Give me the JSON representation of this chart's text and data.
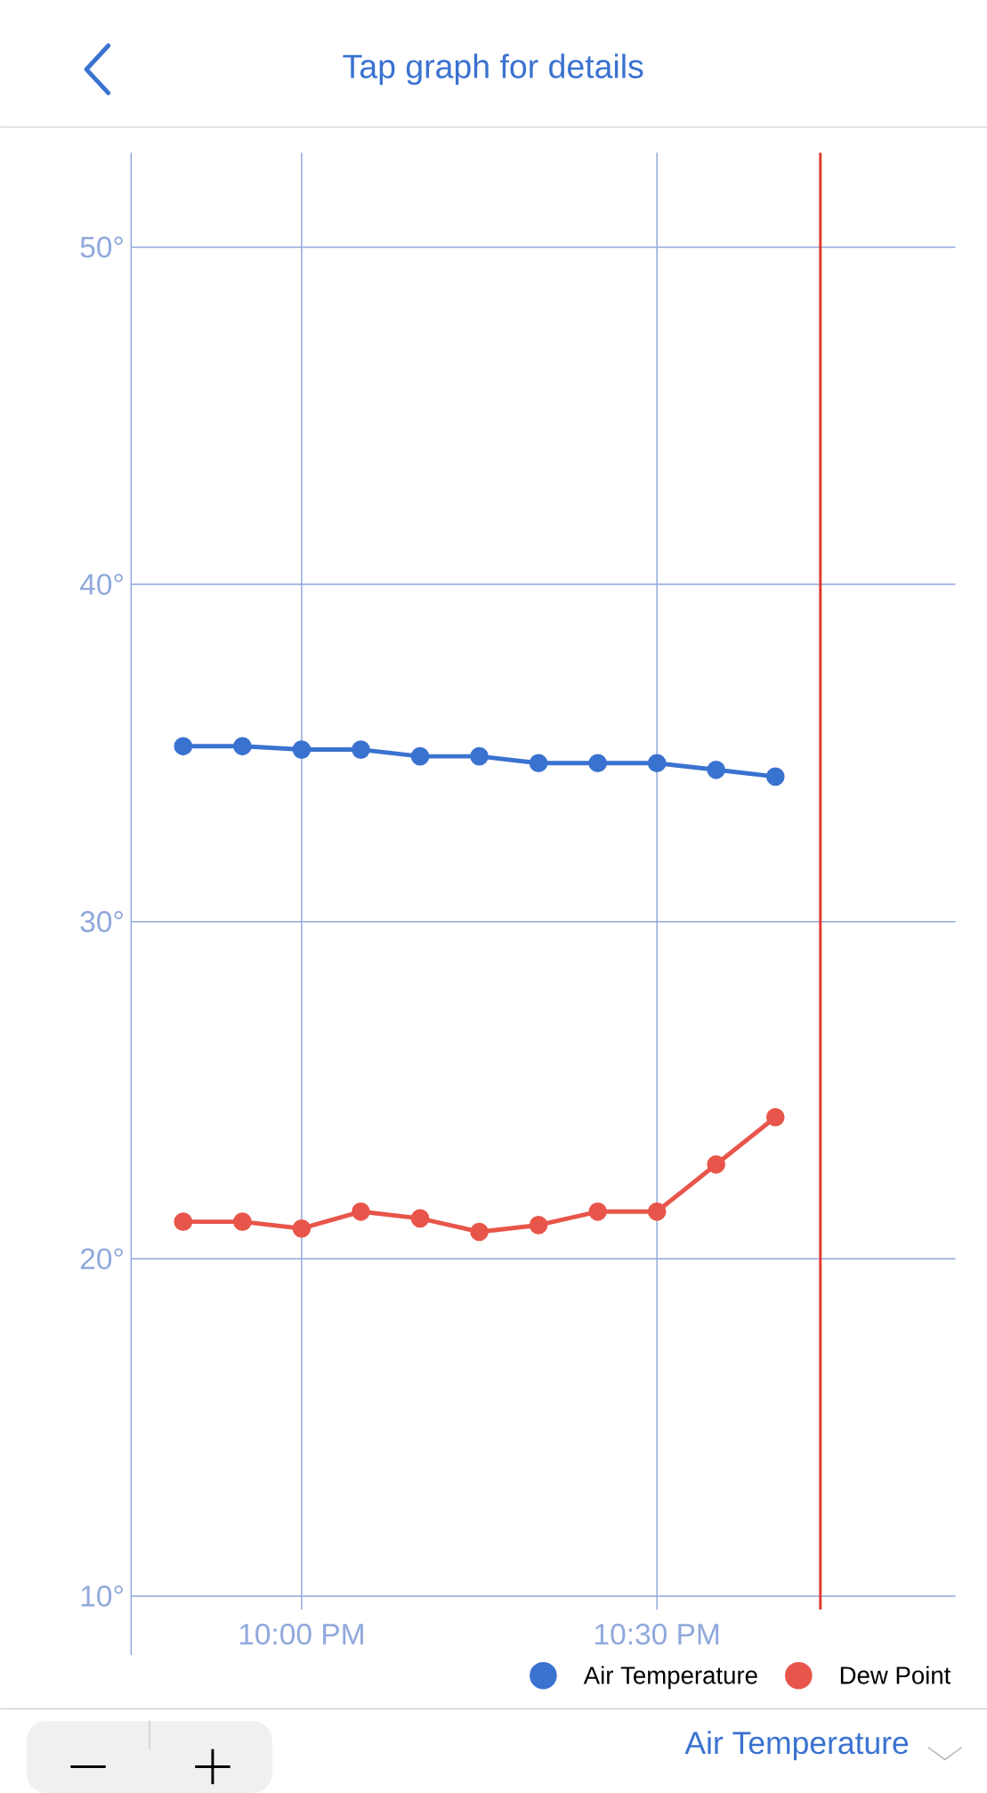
{
  "chart_data": {
    "type": "line",
    "title": "Tap graph for details",
    "x": [
      21.8333,
      21.9167,
      22.0,
      22.0833,
      22.1667,
      22.25,
      22.3333,
      22.4167,
      22.5,
      22.5833,
      22.6667
    ],
    "series": [
      {
        "name": "Air Temperature",
        "color": "#3a72d0",
        "values": [
          35.2,
          35.2,
          35.1,
          35.1,
          34.9,
          34.9,
          34.7,
          34.7,
          34.7,
          34.5,
          34.3
        ]
      },
      {
        "name": "Dew Point",
        "color": "#e8554a",
        "values": [
          21.1,
          21.1,
          20.9,
          21.4,
          21.2,
          20.8,
          21.0,
          21.4,
          21.4,
          22.8,
          24.2
        ]
      }
    ],
    "xlim": [
      21.76,
      22.92
    ],
    "ylim": [
      9.6,
      52.8
    ],
    "xticks": [
      {
        "value": 22.0,
        "label": "10:00 PM"
      },
      {
        "value": 22.5,
        "label": "10:30 PM"
      }
    ],
    "yticks": [
      {
        "value": 10,
        "label": "10°"
      },
      {
        "value": 20,
        "label": "20°"
      },
      {
        "value": 30,
        "label": "30°"
      },
      {
        "value": 40,
        "label": "40°"
      },
      {
        "value": 50,
        "label": "50°"
      }
    ],
    "ref_lines": [
      {
        "axis": "x",
        "value": 22.73,
        "color": "#e0392f"
      }
    ],
    "grid": true,
    "legend": "bottom right",
    "marker": "circle",
    "line_style": "solid",
    "annotations": [
      "Air Temperature"
    ]
  }
}
